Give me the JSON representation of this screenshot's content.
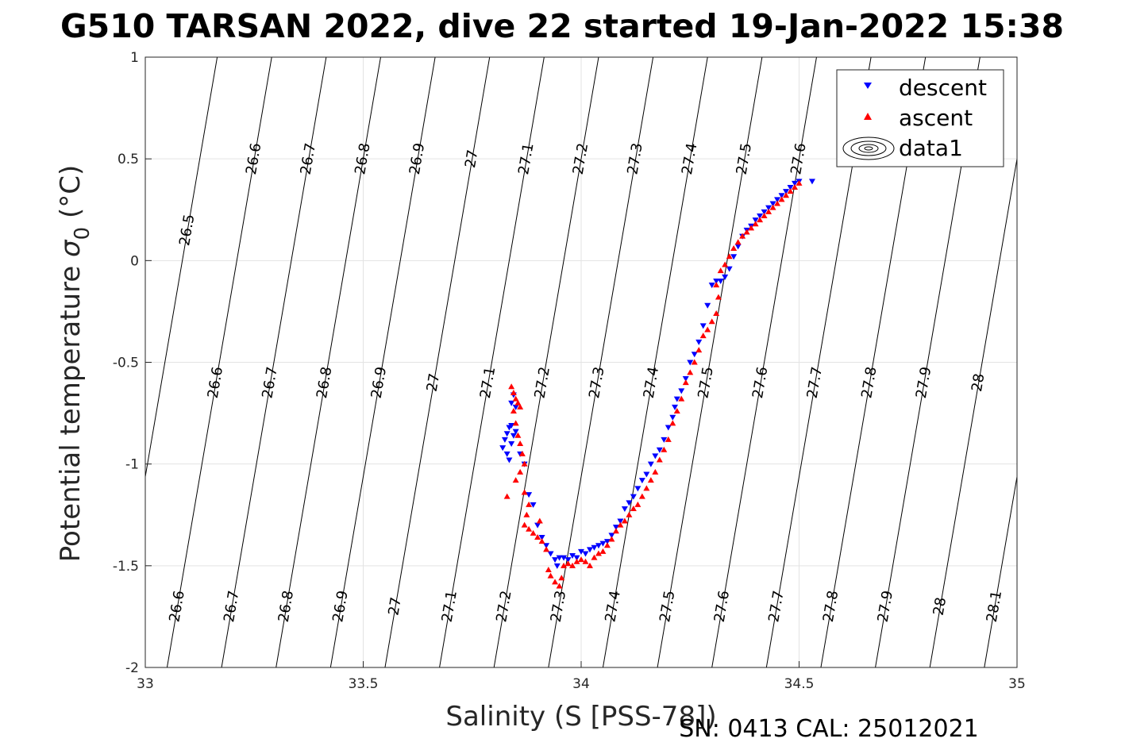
{
  "chart_data": {
    "type": "scatter",
    "title": "G510 TARSAN 2022, dive 22 started 19-Jan-2022 15:38",
    "xlabel": "Salinity (S [PSS-78])",
    "ylabel_main": "Potential temperature ",
    "ylabel_symbol": "σ",
    "ylabel_sub": "0",
    "ylabel_unit": " (°C)",
    "footer": "SN: 0413  CAL: 25012021",
    "xlim": [
      33,
      35
    ],
    "ylim": [
      -2,
      1
    ],
    "xticks": [
      33,
      33.5,
      34,
      34.5,
      35
    ],
    "xtick_labels": [
      "33",
      "33.5",
      "34",
      "34.5",
      "35"
    ],
    "yticks": [
      -2,
      -1.5,
      -1,
      -0.5,
      0,
      0.5,
      1
    ],
    "ytick_labels": [
      "-2",
      "-1.5",
      "-1",
      "-0.5",
      "0",
      "0.5",
      "1"
    ],
    "grid": true,
    "legend_position": "top-right",
    "legend": [
      {
        "name": "descent",
        "marker": "triangle-down",
        "color": "#0000ff"
      },
      {
        "name": "ascent",
        "marker": "triangle-up",
        "color": "#ff0000"
      },
      {
        "name": "data1",
        "marker": "contour",
        "color": "#000000"
      }
    ],
    "isopycnals": {
      "levels": [
        "26.5",
        "26.6",
        "26.7",
        "26.8",
        "26.9",
        "27",
        "27.1",
        "27.2",
        "27.3",
        "27.4",
        "27.5",
        "27.6",
        "27.7",
        "27.8",
        "27.9",
        "28",
        "28.1"
      ],
      "values": [
        26.5,
        26.6,
        26.7,
        26.8,
        26.9,
        27.0,
        27.1,
        27.2,
        27.3,
        27.4,
        27.5,
        27.6,
        27.7,
        27.8,
        27.9,
        28.0,
        28.1
      ],
      "salinity_at_theta_-2": [
        32.925,
        33.05,
        33.175,
        33.3,
        33.425,
        33.55,
        33.675,
        33.8,
        33.925,
        34.05,
        34.175,
        34.3,
        34.425,
        34.55,
        34.675,
        34.8,
        34.925
      ],
      "salinity_at_theta_1": [
        33.165,
        33.29,
        33.415,
        33.54,
        33.665,
        33.79,
        33.915,
        34.04,
        34.165,
        34.29,
        34.415,
        34.54,
        34.665,
        34.79,
        34.915,
        35.04,
        35.165
      ]
    },
    "series": [
      {
        "name": "descent",
        "color": "#0000ff",
        "marker": "triangle-down",
        "points": [
          [
            33.82,
            -0.92
          ],
          [
            33.825,
            -0.88
          ],
          [
            33.83,
            -0.85
          ],
          [
            33.835,
            -0.82
          ],
          [
            33.84,
            -0.81
          ],
          [
            33.83,
            -0.95
          ],
          [
            33.835,
            -0.98
          ],
          [
            33.84,
            -0.9
          ],
          [
            33.845,
            -0.86
          ],
          [
            33.85,
            -0.84
          ],
          [
            33.84,
            -0.7
          ],
          [
            33.845,
            -0.66
          ],
          [
            33.85,
            -0.72
          ],
          [
            33.86,
            -0.95
          ],
          [
            33.87,
            -1.0
          ],
          [
            33.88,
            -1.15
          ],
          [
            33.89,
            -1.2
          ],
          [
            33.9,
            -1.3
          ],
          [
            33.91,
            -1.36
          ],
          [
            33.92,
            -1.4
          ],
          [
            33.93,
            -1.44
          ],
          [
            33.94,
            -1.47
          ],
          [
            33.945,
            -1.5
          ],
          [
            33.95,
            -1.46
          ],
          [
            33.96,
            -1.46
          ],
          [
            33.97,
            -1.47
          ],
          [
            33.98,
            -1.45
          ],
          [
            33.99,
            -1.46
          ],
          [
            34.0,
            -1.43
          ],
          [
            34.01,
            -1.44
          ],
          [
            34.02,
            -1.42
          ],
          [
            34.03,
            -1.41
          ],
          [
            34.04,
            -1.4
          ],
          [
            34.05,
            -1.39
          ],
          [
            34.06,
            -1.38
          ],
          [
            34.07,
            -1.35
          ],
          [
            34.08,
            -1.31
          ],
          [
            34.09,
            -1.28
          ],
          [
            34.1,
            -1.22
          ],
          [
            34.11,
            -1.19
          ],
          [
            34.12,
            -1.16
          ],
          [
            34.13,
            -1.12
          ],
          [
            34.14,
            -1.08
          ],
          [
            34.15,
            -1.05
          ],
          [
            34.16,
            -1.0
          ],
          [
            34.17,
            -0.96
          ],
          [
            34.18,
            -0.93
          ],
          [
            34.19,
            -0.88
          ],
          [
            34.2,
            -0.82
          ],
          [
            34.21,
            -0.77
          ],
          [
            34.215,
            -0.72
          ],
          [
            34.22,
            -0.68
          ],
          [
            34.23,
            -0.64
          ],
          [
            34.24,
            -0.58
          ],
          [
            34.25,
            -0.5
          ],
          [
            34.26,
            -0.46
          ],
          [
            34.27,
            -0.4
          ],
          [
            34.28,
            -0.32
          ],
          [
            34.29,
            -0.22
          ],
          [
            34.3,
            -0.12
          ],
          [
            34.31,
            -0.1
          ],
          [
            34.32,
            -0.1
          ],
          [
            34.33,
            -0.08
          ],
          [
            34.34,
            -0.04
          ],
          [
            34.35,
            0.02
          ],
          [
            34.36,
            0.07
          ],
          [
            34.37,
            0.12
          ],
          [
            34.38,
            0.15
          ],
          [
            34.39,
            0.17
          ],
          [
            34.4,
            0.2
          ],
          [
            34.41,
            0.22
          ],
          [
            34.42,
            0.24
          ],
          [
            34.43,
            0.26
          ],
          [
            34.44,
            0.28
          ],
          [
            34.45,
            0.3
          ],
          [
            34.46,
            0.32
          ],
          [
            34.47,
            0.34
          ],
          [
            34.48,
            0.36
          ],
          [
            34.49,
            0.38
          ],
          [
            34.5,
            0.39
          ],
          [
            34.53,
            0.39
          ]
        ]
      },
      {
        "name": "ascent",
        "color": "#ff0000",
        "marker": "triangle-up",
        "points": [
          [
            33.84,
            -0.62
          ],
          [
            33.845,
            -0.65
          ],
          [
            33.85,
            -0.68
          ],
          [
            33.855,
            -0.7
          ],
          [
            33.86,
            -0.72
          ],
          [
            33.845,
            -0.74
          ],
          [
            33.85,
            -0.8
          ],
          [
            33.855,
            -0.86
          ],
          [
            33.86,
            -0.9
          ],
          [
            33.865,
            -0.95
          ],
          [
            33.87,
            -1.0
          ],
          [
            33.86,
            -1.04
          ],
          [
            33.85,
            -1.08
          ],
          [
            33.83,
            -1.16
          ],
          [
            33.87,
            -1.14
          ],
          [
            33.88,
            -1.2
          ],
          [
            33.875,
            -1.25
          ],
          [
            33.87,
            -1.3
          ],
          [
            33.88,
            -1.32
          ],
          [
            33.89,
            -1.34
          ],
          [
            33.9,
            -1.36
          ],
          [
            33.905,
            -1.28
          ],
          [
            33.91,
            -1.38
          ],
          [
            33.92,
            -1.42
          ],
          [
            33.925,
            -1.52
          ],
          [
            33.93,
            -1.55
          ],
          [
            33.94,
            -1.58
          ],
          [
            33.95,
            -1.6
          ],
          [
            33.955,
            -1.56
          ],
          [
            33.96,
            -1.5
          ],
          [
            33.97,
            -1.49
          ],
          [
            33.98,
            -1.5
          ],
          [
            33.99,
            -1.48
          ],
          [
            34.0,
            -1.47
          ],
          [
            34.01,
            -1.48
          ],
          [
            34.02,
            -1.5
          ],
          [
            34.03,
            -1.46
          ],
          [
            34.04,
            -1.44
          ],
          [
            34.05,
            -1.43
          ],
          [
            34.06,
            -1.4
          ],
          [
            34.07,
            -1.37
          ],
          [
            34.08,
            -1.33
          ],
          [
            34.09,
            -1.3
          ],
          [
            34.1,
            -1.28
          ],
          [
            34.11,
            -1.25
          ],
          [
            34.12,
            -1.22
          ],
          [
            34.13,
            -1.2
          ],
          [
            34.14,
            -1.16
          ],
          [
            34.15,
            -1.12
          ],
          [
            34.16,
            -1.08
          ],
          [
            34.17,
            -1.04
          ],
          [
            34.18,
            -0.98
          ],
          [
            34.19,
            -0.93
          ],
          [
            34.2,
            -0.88
          ],
          [
            34.21,
            -0.8
          ],
          [
            34.22,
            -0.74
          ],
          [
            34.23,
            -0.68
          ],
          [
            34.24,
            -0.6
          ],
          [
            34.25,
            -0.55
          ],
          [
            34.26,
            -0.5
          ],
          [
            34.27,
            -0.44
          ],
          [
            34.28,
            -0.37
          ],
          [
            34.29,
            -0.34
          ],
          [
            34.3,
            -0.3
          ],
          [
            34.31,
            -0.26
          ],
          [
            34.315,
            -0.18
          ],
          [
            34.31,
            -0.12
          ],
          [
            34.32,
            -0.05
          ],
          [
            34.33,
            -0.02
          ],
          [
            34.34,
            0.02
          ],
          [
            34.35,
            0.06
          ],
          [
            34.36,
            0.09
          ],
          [
            34.37,
            0.12
          ],
          [
            34.38,
            0.14
          ],
          [
            34.39,
            0.16
          ],
          [
            34.4,
            0.18
          ],
          [
            34.41,
            0.2
          ],
          [
            34.42,
            0.22
          ],
          [
            34.43,
            0.24
          ],
          [
            34.44,
            0.26
          ],
          [
            34.45,
            0.28
          ],
          [
            34.46,
            0.3
          ],
          [
            34.47,
            0.32
          ],
          [
            34.48,
            0.34
          ],
          [
            34.49,
            0.36
          ],
          [
            34.5,
            0.38
          ]
        ]
      }
    ]
  }
}
